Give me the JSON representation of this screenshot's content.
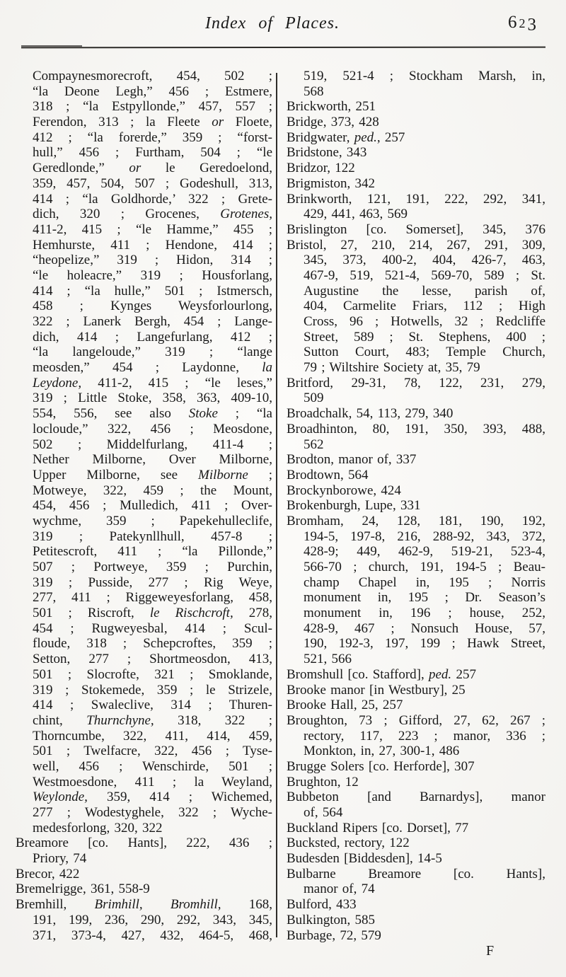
{
  "page": {
    "title": "Index of Places.",
    "page_number": "623",
    "signature": "F"
  },
  "colors": {
    "paper": "#fbfaf7",
    "ink": "#191919",
    "rule": "#2e2c29"
  },
  "columns": {
    "left": [
      [
        "ij",
        "Compaynesmorecroft, 454, 502 ;"
      ],
      [
        "ij",
        "“la Deone Legh,” 456 ; Estmere,"
      ],
      [
        "ij",
        "318 ; “la Estpyllonde,” 457, 557 ;"
      ],
      [
        "ij",
        "Ferendon, 313 ; la Fleete ",
        {
          "it": "or"
        },
        " Floete,"
      ],
      [
        "ij",
        "412 ; “la forerde,” 359 ; “forst-"
      ],
      [
        "ij",
        "hull,” 456 ; Furtham, 504 ; “le"
      ],
      [
        "ij",
        "Geredlonde,” ",
        {
          "it": "or"
        },
        " le Geredoelond,"
      ],
      [
        "ij",
        "359, 457, 504, 507 ; Godeshull, 313,"
      ],
      [
        "ij",
        "414 ; “la Goldhorde,’ 322 ; Grete-"
      ],
      [
        "ij",
        "dich, 320 ; Grocenes, ",
        {
          "it": "Grotenes,"
        }
      ],
      [
        "ij",
        "411-2, 415 ; “le Hamme,” 455 ;"
      ],
      [
        "ij",
        "Hemhurste, 411 ; Hendone, 414 ;"
      ],
      [
        "ij",
        "“heopelize,” 319 ; Hidon, 314 ;"
      ],
      [
        "ij",
        "“le holeacre,” 319 ; Housforlang,"
      ],
      [
        "ij",
        "414 ; “la hulle,” 501 ; Istmersch,"
      ],
      [
        "ij",
        "458 ; Kynges Weysforlourlong,"
      ],
      [
        "ij",
        "322 ; Lanerk Bergh, 454 ; Lange-"
      ],
      [
        "ij",
        "dich, 414 ; Langefurlang, 412 ;"
      ],
      [
        "ij",
        "“la langeloude,” 319 ; “lange"
      ],
      [
        "ij",
        "meosden,” 454 ; Laydonne, ",
        {
          "it": "la"
        }
      ],
      [
        "ij",
        {
          "it": "Leydone,"
        },
        " 411-2, 415 ; “le leses,”"
      ],
      [
        "ij",
        "319 ; Little Stoke, 358, 363, 409-10,"
      ],
      [
        "ij",
        "554, 556, see also ",
        {
          "it": "Stoke"
        },
        " ; “la"
      ],
      [
        "ij",
        "locloude,” 322, 456 ; Meosdone,"
      ],
      [
        "ij",
        "502 ; Middelfurlang, 411-4 ;"
      ],
      [
        "ij",
        "Nether Milborne, Over Milborne,"
      ],
      [
        "ij",
        "Upper Milborne, see ",
        {
          "it": "Milborne"
        },
        " ;"
      ],
      [
        "ij",
        "Motweye, 322, 459 ; the Mount,"
      ],
      [
        "ij",
        "454, 456 ; Mulledich, 411 ; Over-"
      ],
      [
        "ij",
        "wychme, 359 ; Papekehulleclife,"
      ],
      [
        "ij",
        "319 ; Patekynllhull, 457-8 ;"
      ],
      [
        "ij",
        "Petitescroft, 411 ; “la Pillonde,”"
      ],
      [
        "ij",
        "507 ; Portweye, 359 ; Purchin,"
      ],
      [
        "ij",
        "319 ; Pusside, 277 ; Rig Weye,"
      ],
      [
        "ij",
        "277, 411 ; Riggeweyesforlang, 458,"
      ],
      [
        "ij",
        "501 ; Riscroft, ",
        {
          "it": "le Rischcroft,"
        },
        " 278,"
      ],
      [
        "ij",
        "454 ; Rugweyesbal, 414 ; Scul-"
      ],
      [
        "ij",
        "floude, 318 ; Schepcroftes, 359 ;"
      ],
      [
        "ij",
        "Setton, 277 ; Shortmeosdon, 413,"
      ],
      [
        "ij",
        "501 ; Slocrofte, 321 ; Smoklande,"
      ],
      [
        "ij",
        "319 ; Stokemede, 359 ; le Strizele,"
      ],
      [
        "ij",
        "414 ; Swaleclive, 314 ; Thuren-"
      ],
      [
        "ij",
        "chint, ",
        {
          "it": "Thurnchyne,"
        },
        " 318, 322 ;"
      ],
      [
        "ij",
        "Thorncumbe, 322, 411, 414, 459,"
      ],
      [
        "ij",
        "501 ; Twelfacre, 322, 456 ; Tyse-"
      ],
      [
        "ij",
        "well, 456 ; Wenschirde, 501 ;"
      ],
      [
        "ij",
        "Westmoesdone, 411 ; la Weyland,"
      ],
      [
        "ij",
        {
          "it": "Weylonde,"
        },
        " 359, 414 ; Wichemed,"
      ],
      [
        "ij",
        "277 ; Wodestyghele, 322 ; Wyche-"
      ],
      [
        "i",
        "medesforlong, 320, 322"
      ],
      [
        "j",
        "Breamore [co. Hants], 222, 436 ;"
      ],
      [
        "i",
        "Priory, 74"
      ],
      [
        "",
        "Brecor, 422"
      ],
      [
        "",
        "Bremelrigge, 361, 558-9"
      ],
      [
        "j",
        "Bremhill, ",
        {
          "it": "Brimhill, Bromhill,"
        },
        " 168,"
      ],
      [
        "ij",
        "191, 199, 236, 290, 292, 343, 345,"
      ],
      [
        "ij",
        "371, 373-4, 427, 432, 464-5, 468,"
      ]
    ],
    "right": [
      [
        "ij",
        "519, 521-4 ; Stockham Marsh, in,"
      ],
      [
        "i",
        "568"
      ],
      [
        "",
        "Brickworth, 251"
      ],
      [
        "",
        "Bridge, 373, 428"
      ],
      [
        "",
        "Bridgwater, ",
        {
          "it": "ped."
        },
        ", 257"
      ],
      [
        "",
        "Bridstone, 343"
      ],
      [
        "",
        "Bridzor, 122"
      ],
      [
        "",
        "Brigmiston, 342"
      ],
      [
        "j",
        "Brinkworth, 121, 191, 222, 292, 341,"
      ],
      [
        "i",
        "429, 441, 463, 569"
      ],
      [
        "j",
        "Brislington [co. Somerset], 345, 376"
      ],
      [
        "j",
        "Bristol, 27, 210, 214, 267, 291, 309,"
      ],
      [
        "ij",
        "345, 373, 400-2, 404, 426-7, 463,"
      ],
      [
        "ij",
        "467-9, 519, 521-4, 569-70, 589 ; St."
      ],
      [
        "ij",
        "Augustine the lesse, parish of,"
      ],
      [
        "ij",
        "404, Carmelite Friars, 112 ; High"
      ],
      [
        "ij",
        "Cross, 96 ; Hotwells, 32 ; Redcliffe"
      ],
      [
        "ij",
        "Street, 589 ; St. Stephens, 400 ;"
      ],
      [
        "ij",
        "Sutton Court, 483; Temple Church,"
      ],
      [
        "i",
        "79 ; Wiltshire Society at, 35, 79"
      ],
      [
        "j",
        "Britford, 29-31, 78, 122, 231, 279,"
      ],
      [
        "i",
        "509"
      ],
      [
        "",
        "Broadchalk, 54, 113, 279, 340"
      ],
      [
        "j",
        "Broadhinton, 80, 191, 350, 393, 488,"
      ],
      [
        "i",
        "562"
      ],
      [
        "",
        "Brodton, manor of, 337"
      ],
      [
        "",
        "Brodtown, 564"
      ],
      [
        "",
        "Brockynborowe, 424"
      ],
      [
        "",
        "Brokenburgh, Lupe, 331"
      ],
      [
        "j",
        "Bromham, 24, 128, 181, 190, 192,"
      ],
      [
        "ij",
        "194-5, 197-8, 216, 288-92, 343, 372,"
      ],
      [
        "ij",
        "428-9; 449, 462-9, 519-21, 523-4,"
      ],
      [
        "ij",
        "566-70 ; church, 191, 194-5 ; Beau-"
      ],
      [
        "ij",
        "champ Chapel in, 195 ; Norris"
      ],
      [
        "ij",
        "monument in, 195 ; Dr. Season’s"
      ],
      [
        "ij",
        "monument in, 196 ; house, 252,"
      ],
      [
        "ij",
        "428-9, 467 ; Nonsuch House, 57,"
      ],
      [
        "ij",
        "190, 192-3, 197, 199 ; Hawk Street,"
      ],
      [
        "i",
        "521, 566"
      ],
      [
        "",
        "Bromshull [co. Stafford], ",
        {
          "it": "ped."
        },
        " 257"
      ],
      [
        "",
        "Brooke manor [in Westbury], 25"
      ],
      [
        "",
        "Brooke Hall, 25, 257"
      ],
      [
        "j",
        "Broughton, 73 ; Gifford, 27, 62, 267 ;"
      ],
      [
        "ij",
        "rectory, 117, 223 ; manor, 336 ;"
      ],
      [
        "i",
        "Monkton, in, 27, 300-1, 486"
      ],
      [
        "",
        "Brugge Solers [co. Herforde], 307"
      ],
      [
        "",
        "Brughton, 12"
      ],
      [
        "j",
        "Bubbeton [and Barnardys], manor"
      ],
      [
        "i",
        "of, 564"
      ],
      [
        "",
        "Buckland Ripers [co. Dorset], 77"
      ],
      [
        "",
        "Bucksted, rectory, 122"
      ],
      [
        "",
        "Budesden [Biddesden], 14-5"
      ],
      [
        "j",
        "Bulbarne Breamore [co. Hants],"
      ],
      [
        "i",
        "manor of, 74"
      ],
      [
        "",
        "Bulford, 433"
      ],
      [
        "",
        "Bulkington, 585"
      ],
      [
        "",
        "Burbage, 72, 579"
      ]
    ]
  }
}
